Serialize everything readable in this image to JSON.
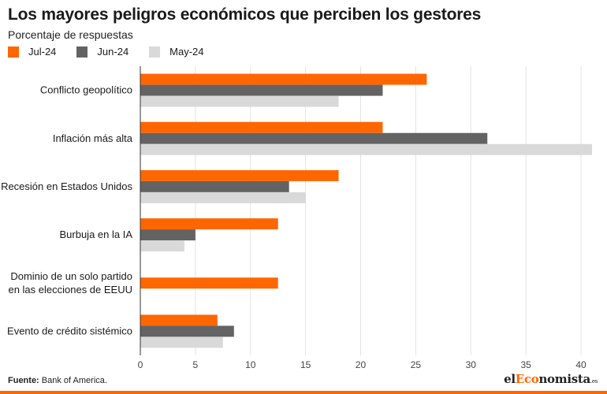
{
  "header": {
    "title": "Los mayores peligros económicos que perciben los gestores",
    "subtitle": "Porcentaje de respuestas"
  },
  "footer": {
    "source_label": "Fuente:",
    "source_text": "Bank of America.",
    "logo_prefix": "el",
    "logo_accent": "Eco",
    "logo_suffix": "nomista",
    "logo_domain": ".es"
  },
  "chart_data": {
    "type": "bar",
    "orientation": "horizontal",
    "categories": [
      "Conflicto geopolítico",
      "Inflación más alta",
      "Recesión en Estados Unidos",
      "Burbuja en la IA",
      "Dominio de un solo partido en las elecciones de EEUU",
      "Evento de crédito sistémico"
    ],
    "category_lines": [
      [
        "Conflicto geopolítico"
      ],
      [
        "Inflación más alta"
      ],
      [
        "Recesión en Estados Unidos"
      ],
      [
        "Burbuja en la IA"
      ],
      [
        "Dominio de un solo partido",
        "en las elecciones de EEUU"
      ],
      [
        "Evento de crédito sistémico"
      ]
    ],
    "series": [
      {
        "name": "Jul-24",
        "color": "#ff6600",
        "values": [
          26,
          22,
          18,
          12.5,
          12.5,
          7
        ]
      },
      {
        "name": "Jun-24",
        "color": "#636363",
        "values": [
          22,
          31.5,
          13.5,
          5,
          null,
          8.5
        ]
      },
      {
        "name": "May-24",
        "color": "#d9d9d9",
        "values": [
          18,
          41,
          15,
          4,
          null,
          7.5
        ]
      }
    ],
    "xlim": [
      0,
      41
    ],
    "xticks": [
      0,
      5,
      10,
      15,
      20,
      25,
      30,
      35,
      40
    ],
    "grid": true,
    "legend_position": "top-left"
  }
}
